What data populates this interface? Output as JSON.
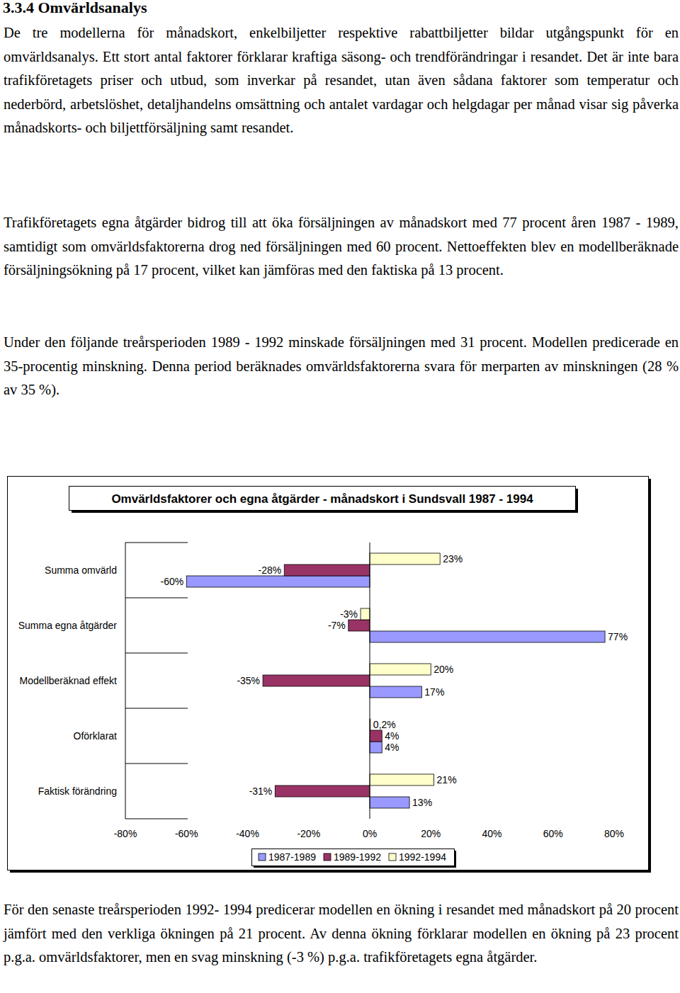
{
  "document": {
    "heading": "3.3.4 Omvärldsanalys",
    "paragraphs_before": [
      "De tre modellerna för månadskort, enkelbiljetter respektive rabattbiljetter bildar utgångspunkt för en omvärldsanalys. Ett stort antal faktorer förklarar kraftiga säsong- och trendförändringar i resandet. Det är inte bara trafikföretagets priser och utbud, som inverkar på resandet, utan även sådana faktorer som temperatur och nederbörd, arbetslöshet, detaljhandelns omsättning och antalet vardagar och helgdagar per månad visar sig påverka månadskorts- och biljettförsäljning samt resandet.",
      "Trafikföretagets egna åtgärder bidrog till att öka försäljningen av månadskort med 77 procent åren 1987 - 1989, samtidigt som omvärldsfaktorerna drog ned försäljningen med 60 procent. Nettoeffekten blev en modellberäknade försäljningsökning på 17 procent, vilket kan jämföras med den faktiska på 13 procent.",
      "Under den följande treårsperioden 1989 - 1992 minskade försäljningen med 31 procent. Modellen predicerade en 35-procentig minskning. Denna period beräknades omvärldsfaktorerna svara för merparten av minskningen (28 % av 35 %)."
    ],
    "paragraphs_after": [
      "För den senaste treårsperioden 1992- 1994 predicerar modellen en ökning i resandet med månadskort på 20 procent jämfört med den verkliga ökningen på 21 procent. Av denna ökning förklarar modellen en ökning på 23 procent p.g.a. omvärldsfaktorer, men en svag minskning (-3 %) p.g.a. trafikföretagets egna åtgärder."
    ]
  },
  "chart_data": {
    "type": "bar",
    "orientation": "horizontal",
    "title": "Omvärldsfaktorer och egna åtgärder - månadskort i Sundsvall 1987 - 1994",
    "categories": [
      "Summa omvärld",
      "Summa egna åtgärder",
      "Modellberäknad effekt",
      "Oförklarat",
      "Faktisk förändring"
    ],
    "series": [
      {
        "name": "1987-1989",
        "color": "#9999ff",
        "values": [
          -60,
          77,
          17,
          4,
          13
        ],
        "value_labels": [
          "-60%",
          "77%",
          "17%",
          "4%",
          "13%"
        ]
      },
      {
        "name": "1989-1992",
        "color": "#993366",
        "values": [
          -28,
          -7,
          -35,
          4,
          -31
        ],
        "value_labels": [
          "-28%",
          "-7%",
          "-35%",
          "4%",
          "-31%"
        ]
      },
      {
        "name": "1992-1994",
        "color": "#ffffcc",
        "values": [
          23,
          -3,
          20,
          0.2,
          21
        ],
        "value_labels": [
          "23%",
          "-3%",
          "20%",
          "0,2%",
          "21%"
        ]
      }
    ],
    "xlim": [
      -80,
      80
    ],
    "xticks": [
      {
        "value": -80,
        "label": "-80%"
      },
      {
        "value": -60,
        "label": "-60%"
      },
      {
        "value": -40,
        "label": "-40%"
      },
      {
        "value": -20,
        "label": "-20%"
      },
      {
        "value": 0,
        "label": "0%"
      },
      {
        "value": 20,
        "label": "20%"
      },
      {
        "value": 40,
        "label": "40%"
      },
      {
        "value": 60,
        "label": "60%"
      },
      {
        "value": 80,
        "label": "80%"
      }
    ],
    "grid": false,
    "data_labels": true,
    "legend": "bottom"
  }
}
